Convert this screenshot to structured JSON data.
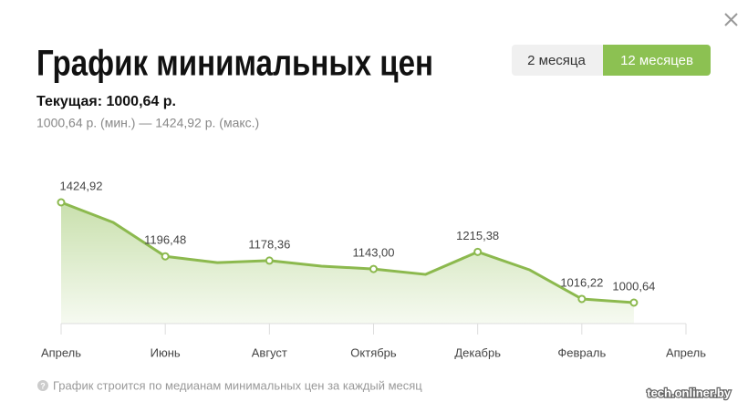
{
  "ui": {
    "title": "График минимальных цен",
    "current": "Текущая: 1000,64 р.",
    "range": "1000,64 р. (мин.) — 1424,92 р. (макс.)",
    "tabs": [
      "2 месяца",
      "12 месяцев"
    ],
    "note": "График строится по медианам минимальных цен за каждый месяц",
    "watermark": "tech.onliner.by"
  },
  "chart_data": {
    "type": "area",
    "categories": [
      "Апрель",
      null,
      "Июнь",
      null,
      "Август",
      null,
      "Октябрь",
      null,
      "Декабрь",
      null,
      "Февраль",
      null,
      "Апрель"
    ],
    "values": [
      1424.92,
      1340,
      1196.48,
      1170,
      1178.36,
      1155,
      1143.0,
      1120,
      1215.38,
      1139,
      1016.22,
      1000.64,
      null
    ],
    "value_labels": [
      "1424,92",
      null,
      "1196,48",
      null,
      "1178,36",
      null,
      "1143,00",
      null,
      "1215,38",
      null,
      "1016,22",
      "1000,64",
      null
    ],
    "color": "#8cb94e"
  }
}
